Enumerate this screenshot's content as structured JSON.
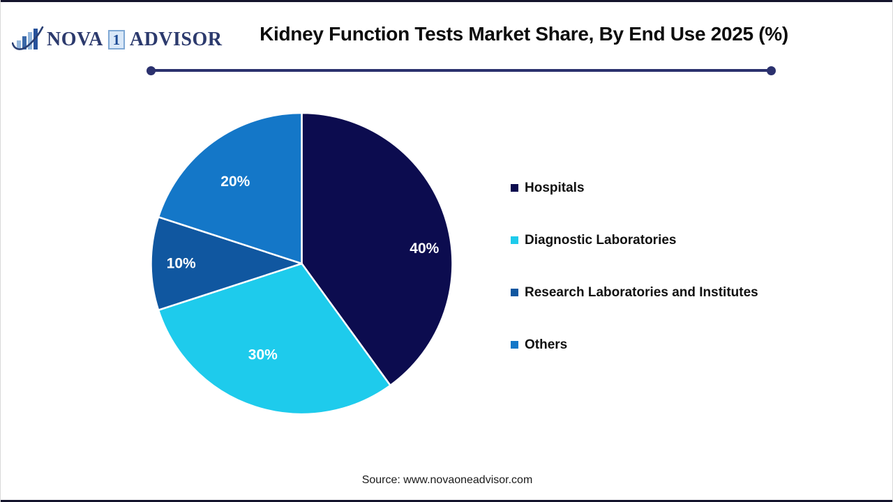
{
  "header": {
    "logo": {
      "nova": "NOVA",
      "one": "1",
      "advisor": "ADVISOR"
    },
    "title": "Kidney Function Tests Market Share, By End Use 2025 (%)"
  },
  "chart_data": {
    "type": "pie",
    "title": "Kidney Function Tests Market Share, By End Use 2025 (%)",
    "categories": [
      "Hospitals",
      "Diagnostic Laboratories",
      "Research Laboratories and Institutes",
      "Others"
    ],
    "values": [
      40,
      30,
      10,
      20
    ],
    "slice_labels": [
      "40%",
      "30%",
      "10%",
      "20%"
    ],
    "colors": [
      "#0c0c4f",
      "#1ecbec",
      "#1057a0",
      "#1477c8"
    ],
    "unit": "%",
    "start_angle_deg": 0,
    "direction": "clockwise",
    "legend_position": "right",
    "slice_label_color": "#ffffff"
  },
  "footer": {
    "source": "Source: www.novaoneadvisor.com"
  },
  "theme": {
    "divider_color": "#2b316e",
    "edge_bar_color": "#14142c"
  }
}
